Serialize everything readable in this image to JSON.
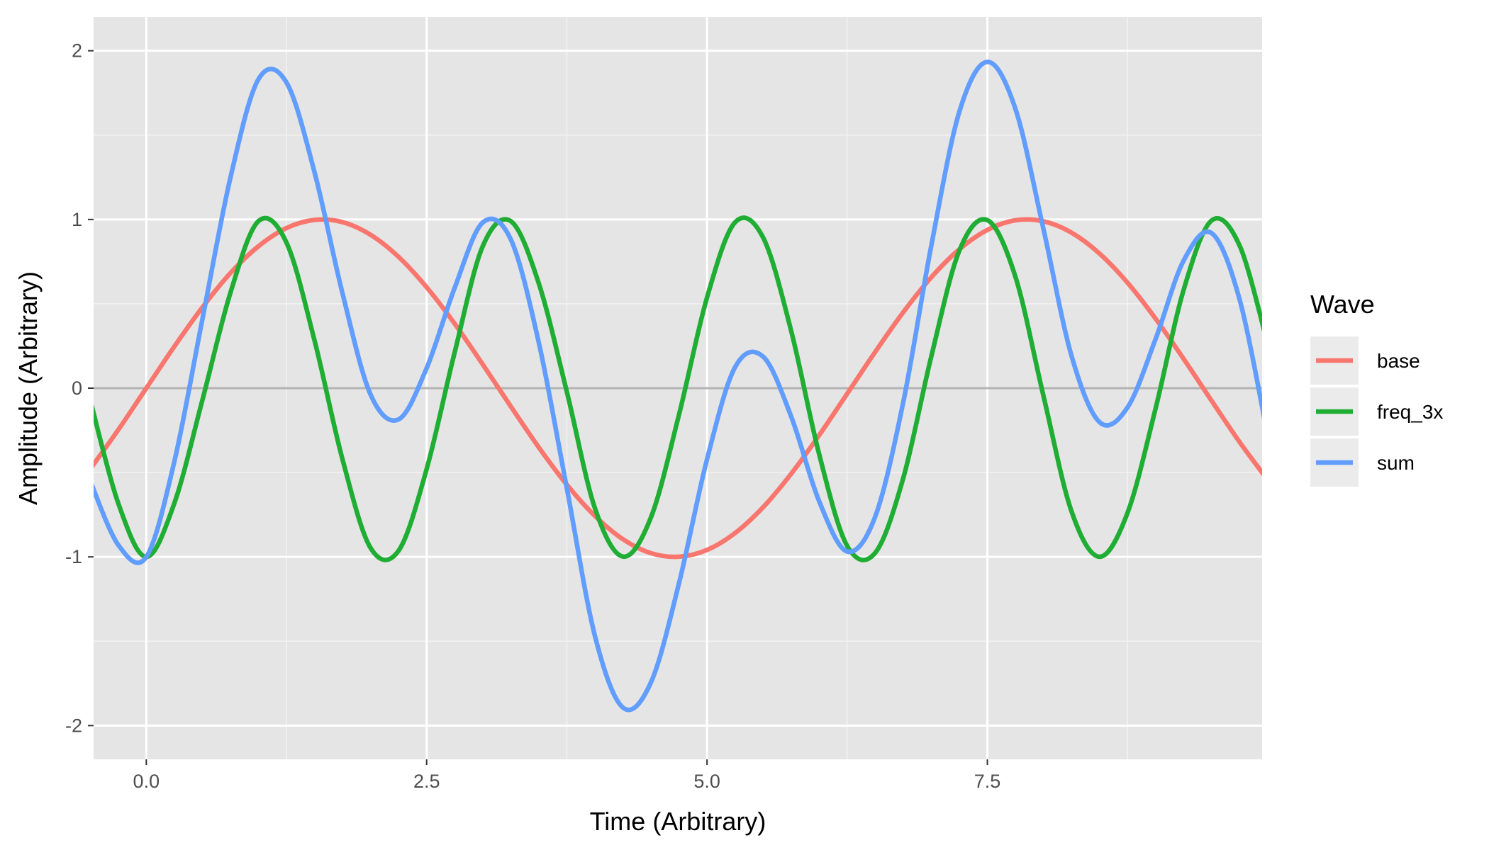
{
  "chart_data": {
    "type": "line",
    "title": "",
    "xlabel": "Time (Arbitrary)",
    "ylabel": "Amplitude (Arbitrary)",
    "xlim": [
      -0.47,
      9.95
    ],
    "ylim": [
      -2.2,
      2.2
    ],
    "x_ticks": [
      0,
      2.5,
      5,
      7.5
    ],
    "x_tick_labels": [
      "0.0",
      "2.5",
      "5.0",
      "7.5"
    ],
    "y_ticks": [
      -2,
      -1,
      0,
      1,
      2
    ],
    "y_tick_labels": [
      "-2",
      "-1",
      "0",
      "1",
      "2"
    ],
    "grid": true,
    "reference_line": {
      "y": 0,
      "color": "#b3b3b3"
    },
    "panel_background": "#e5e5e5",
    "legend": {
      "title": "Wave",
      "position": "right"
    },
    "series": [
      {
        "name": "base",
        "color": "#f8766d",
        "x": [
          -0.5,
          -0.25,
          0,
          0.25,
          0.5,
          0.75,
          1,
          1.25,
          1.5,
          1.75,
          2,
          2.25,
          2.5,
          2.75,
          3,
          3.25,
          3.5,
          3.75,
          4,
          4.25,
          4.5,
          4.75,
          5,
          5.25,
          5.5,
          5.75,
          6,
          6.25,
          6.5,
          6.75,
          7,
          7.25,
          7.5,
          7.75,
          8,
          8.25,
          8.5,
          8.75,
          9,
          9.25,
          9.5,
          9.75,
          10
        ],
        "y": [
          -0.479,
          -0.247,
          0,
          0.247,
          0.479,
          0.682,
          0.841,
          0.949,
          0.997,
          0.984,
          0.909,
          0.778,
          0.598,
          0.382,
          0.141,
          -0.108,
          -0.351,
          -0.572,
          -0.757,
          -0.895,
          -0.978,
          -0.999,
          -0.959,
          -0.859,
          -0.706,
          -0.508,
          -0.279,
          -0.033,
          0.215,
          0.45,
          0.657,
          0.823,
          0.938,
          0.995,
          0.989,
          0.922,
          0.798,
          0.625,
          0.412,
          0.174,
          -0.075,
          -0.32,
          -0.544
        ]
      },
      {
        "name": "freq_3x",
        "color": "#1fae33",
        "x": [
          -0.5,
          -0.25,
          0,
          0.25,
          0.5,
          0.75,
          1,
          1.25,
          1.5,
          1.75,
          2,
          2.25,
          2.5,
          2.75,
          3,
          3.25,
          3.5,
          3.75,
          4,
          4.25,
          4.5,
          4.75,
          5,
          5.25,
          5.5,
          5.75,
          6,
          6.25,
          6.5,
          6.75,
          7,
          7.25,
          7.5,
          7.75,
          8,
          8.25,
          8.5,
          8.75,
          9,
          9.25,
          9.5,
          9.75,
          10
        ],
        "y": [
          -0.071,
          -0.682,
          -1,
          -0.682,
          -0.071,
          0.565,
          0.99,
          0.863,
          0.283,
          -0.423,
          -0.947,
          -0.963,
          -0.479,
          0.213,
          0.841,
          0.99,
          0.621,
          -0.021,
          -0.71,
          -0.998,
          -0.766,
          -0.158,
          0.537,
          0.983,
          0.893,
          0.341,
          -0.391,
          -0.935,
          -0.976,
          -0.533,
          0.188,
          0.815,
          0.996,
          0.661,
          -0.045,
          -0.729,
          -0.999,
          -0.739,
          -0.121,
          0.582,
          0.994,
          0.844,
          0.261
        ]
      },
      {
        "name": "sum",
        "color": "#619cff",
        "x": [
          -0.5,
          -0.25,
          0,
          0.25,
          0.5,
          0.75,
          1,
          1.25,
          1.5,
          1.75,
          2,
          2.25,
          2.5,
          2.75,
          3,
          3.25,
          3.5,
          3.75,
          4,
          4.25,
          4.5,
          4.75,
          5,
          5.25,
          5.5,
          5.75,
          6,
          6.25,
          6.5,
          6.75,
          7,
          7.25,
          7.5,
          7.75,
          8,
          8.25,
          8.5,
          8.75,
          9,
          9.25,
          9.5,
          9.75,
          10
        ],
        "y": [
          -0.55,
          -0.929,
          -1,
          -0.435,
          0.408,
          1.247,
          1.831,
          1.812,
          1.28,
          0.561,
          -0.038,
          -0.185,
          0.119,
          0.595,
          0.982,
          0.882,
          0.27,
          -0.593,
          -1.467,
          -1.893,
          -1.744,
          -1.157,
          -0.422,
          0.124,
          0.187,
          -0.167,
          -0.67,
          -0.968,
          -0.761,
          -0.083,
          0.845,
          1.638,
          1.934,
          1.656,
          0.944,
          0.193,
          -0.201,
          -0.114,
          0.291,
          0.756,
          0.919,
          0.524,
          -0.283
        ]
      }
    ]
  }
}
